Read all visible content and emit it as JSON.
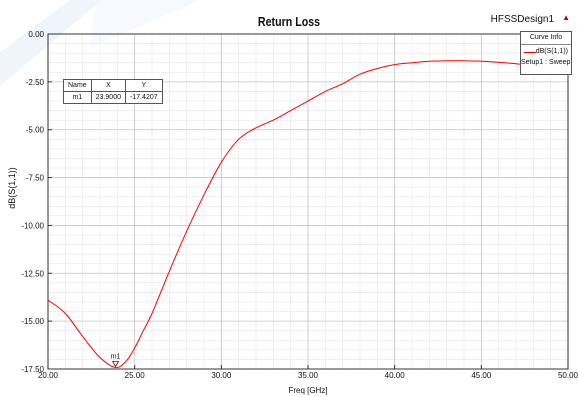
{
  "chart_data": {
    "type": "line",
    "title": "Return Loss",
    "design_name": "HFSSDesign1",
    "xlabel": "Freq [GHz]",
    "ylabel": "dB(S(1,1))",
    "xlim": [
      20.0,
      50.0
    ],
    "ylim": [
      -17.5,
      0.0
    ],
    "x_ticks": [
      "20.00",
      "25.00",
      "30.00",
      "35.00",
      "40.00",
      "45.00",
      "50.00"
    ],
    "y_ticks": [
      "0.00",
      "-2.50",
      "-5.00",
      "-7.50",
      "-10.00",
      "-12.50",
      "-15.00",
      "-17.50"
    ],
    "x_tick_values": [
      20,
      25,
      30,
      35,
      40,
      45,
      50
    ],
    "y_tick_values": [
      0,
      -2.5,
      -5,
      -7.5,
      -10,
      -12.5,
      -15,
      -17.5
    ],
    "grid": true,
    "series": [
      {
        "name": "dB(S(1,1))",
        "color": "#ff0000",
        "x": [
          20.0,
          21.0,
          22.0,
          23.0,
          23.9,
          24.5,
          25.0,
          25.5,
          26.0,
          27.0,
          28.0,
          29.0,
          30.0,
          31.0,
          32.0,
          33.0,
          34.0,
          35.0,
          36.0,
          37.0,
          38.0,
          39.0,
          40.0,
          41.0,
          42.0,
          43.0,
          44.0,
          45.0,
          46.0,
          47.0,
          48.0,
          49.0,
          50.0
        ],
        "y": [
          -13.9,
          -14.6,
          -15.8,
          -16.9,
          -17.42,
          -17.1,
          -16.4,
          -15.5,
          -14.6,
          -12.4,
          -10.3,
          -8.4,
          -6.7,
          -5.5,
          -4.9,
          -4.5,
          -4.0,
          -3.5,
          -3.0,
          -2.6,
          -2.1,
          -1.8,
          -1.6,
          -1.5,
          -1.42,
          -1.4,
          -1.4,
          -1.42,
          -1.48,
          -1.55,
          -1.65,
          -1.75,
          -1.85
        ]
      }
    ],
    "marker": {
      "name": "m1",
      "x": 23.9,
      "y": -17.4207,
      "table_headers": [
        "Name",
        "X",
        "Y"
      ],
      "table_values": [
        "m1",
        "23.9000",
        "-17.4207"
      ]
    },
    "legend": {
      "header": "Curve Info",
      "entry": "dB(S(1,1))",
      "setup": "Setup1 : Sweep",
      "placement": "top-right"
    }
  }
}
